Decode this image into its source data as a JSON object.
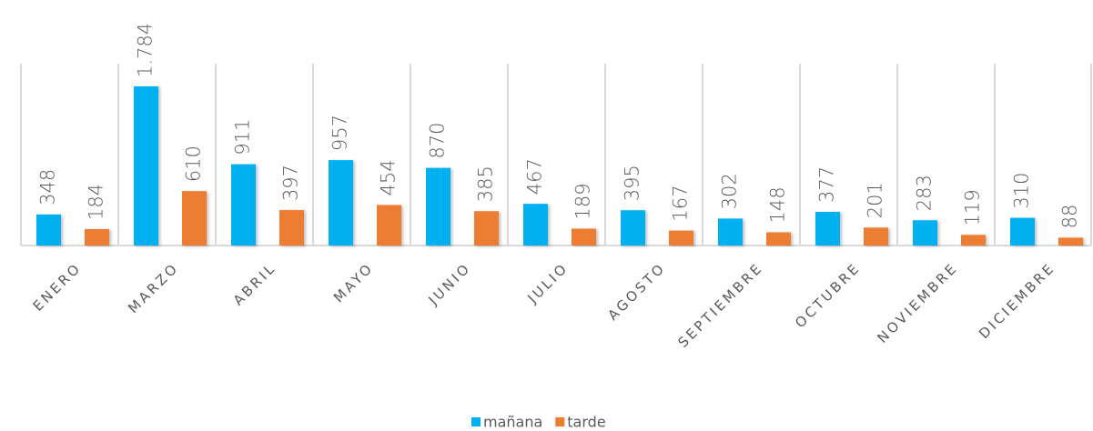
{
  "chart_data": {
    "type": "bar",
    "categories": [
      "ENERO",
      "MARZO",
      "ABRIL",
      "MAYO",
      "JUNIO",
      "JULIO",
      "AGOSTO",
      "SEPTIEMBRE",
      "OCTUBRE",
      "NOVIEMBRE",
      "DICIEMBRE"
    ],
    "series": [
      {
        "name": "mañana",
        "color": "#00b0f0",
        "values": [
          348,
          1784,
          911,
          957,
          870,
          467,
          395,
          302,
          377,
          283,
          310
        ],
        "value_labels": [
          "348",
          "1.784",
          "911",
          "957",
          "870",
          "467",
          "395",
          "302",
          "377",
          "283",
          "310"
        ]
      },
      {
        "name": "tarde",
        "color": "#ed7d31",
        "values": [
          184,
          610,
          397,
          454,
          385,
          189,
          167,
          148,
          201,
          119,
          88
        ]
      }
    ],
    "legend": "bottom"
  }
}
